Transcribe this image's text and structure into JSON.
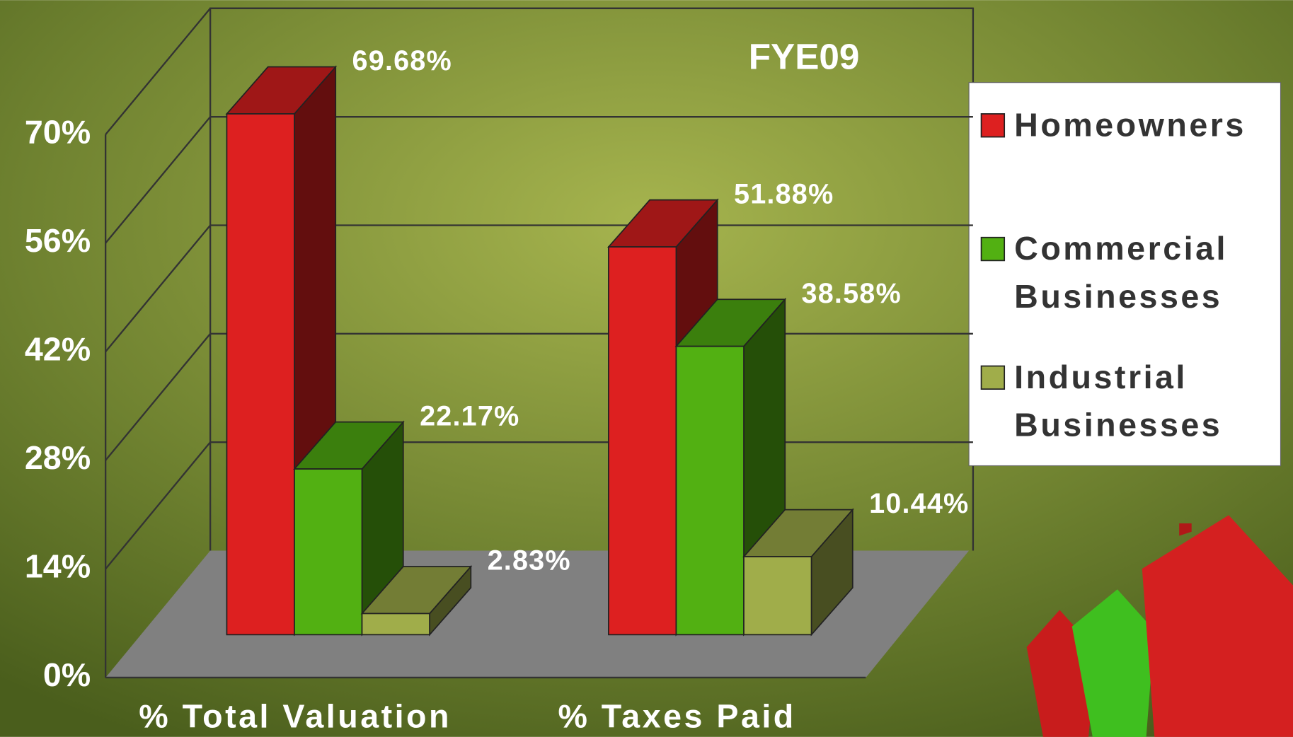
{
  "chart_data": {
    "type": "bar3d",
    "title": "FYE09",
    "categories": [
      "% Total Valuation",
      "% Taxes Paid"
    ],
    "series": [
      {
        "name": "Homeowners",
        "color": "#dd2020",
        "values": [
          69.68,
          51.88
        ],
        "value_labels": [
          "69.68%",
          "51.88%"
        ]
      },
      {
        "name": "Commercial Businesses",
        "color": "#52b012",
        "values": [
          22.17,
          38.58
        ],
        "value_labels": [
          "22.17%",
          "38.58%"
        ]
      },
      {
        "name": "Industrial Businesses",
        "color": "#a0ad4a",
        "values": [
          2.83,
          10.44
        ],
        "value_labels": [
          "2.83%",
          "10.44%"
        ]
      }
    ],
    "ylim": [
      0,
      70
    ],
    "yticks": [
      {
        "value": 0,
        "label": "0%"
      },
      {
        "value": 14,
        "label": "14%"
      },
      {
        "value": 28,
        "label": "28%"
      },
      {
        "value": 42,
        "label": "42%"
      },
      {
        "value": 56,
        "label": "56%"
      },
      {
        "value": 70,
        "label": "70%"
      }
    ],
    "grid": true,
    "legend": "right"
  }
}
